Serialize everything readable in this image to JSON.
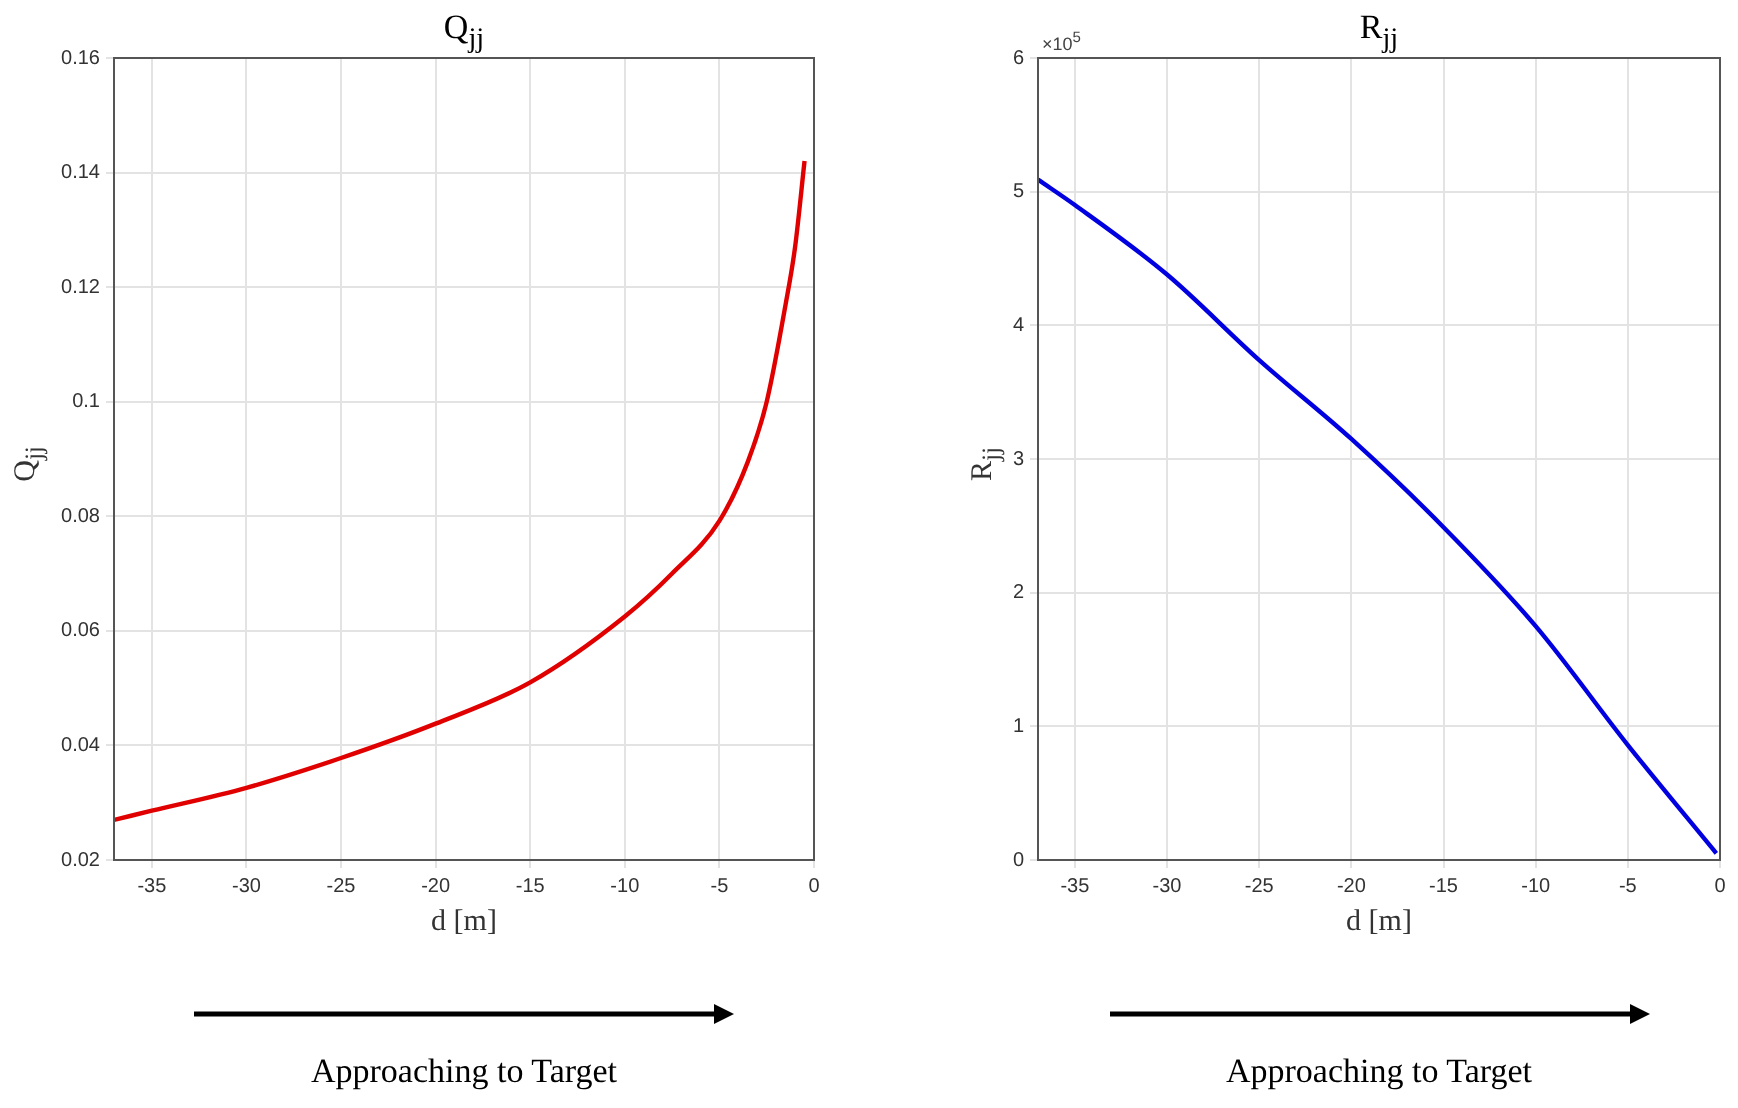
{
  "chart_data": [
    {
      "type": "line",
      "title": "Q$_{jj}$",
      "xlabel": "d [m]",
      "ylabel": "Q$_{jj}$",
      "x": [
        -37,
        -35,
        -30,
        -25,
        -20,
        -15,
        -10,
        -7.5,
        -5,
        -3.5,
        -2.5,
        -1.5,
        -1,
        -0.5
      ],
      "series": [
        {
          "color": "#e00000",
          "values": [
            0.027,
            0.0286,
            0.0326,
            0.0378,
            0.0438,
            0.051,
            0.0625,
            0.07,
            0.0792,
            0.0895,
            0.1,
            0.117,
            0.127,
            0.142
          ]
        }
      ],
      "xlim": [
        -37,
        0
      ],
      "ylim": [
        0.02,
        0.16
      ],
      "xticks": [
        -35,
        -30,
        -25,
        -20,
        -15,
        -10,
        -5,
        0
      ],
      "yticks": [
        0.02,
        0.04,
        0.06,
        0.08,
        0.1,
        0.12,
        0.14,
        0.16
      ],
      "grid": true,
      "annotations": [
        "Approaching to Target"
      ]
    },
    {
      "type": "line",
      "title": "R$_{jj}$",
      "xlabel": "d [m]",
      "ylabel": "R$_{jj}$",
      "x": [
        -37,
        -35,
        -30,
        -25,
        -20,
        -15,
        -10,
        -5,
        -0.2
      ],
      "series": [
        {
          "color": "#0000e0",
          "values": [
            5.09,
            4.9,
            4.38,
            3.74,
            3.15,
            2.49,
            1.75,
            0.86,
            0.05
          ]
        }
      ],
      "xlim": [
        -37,
        0
      ],
      "ylim": [
        0,
        6
      ],
      "xticks": [
        -35,
        -30,
        -25,
        -20,
        -15,
        -10,
        -5,
        0
      ],
      "yticks": [
        0,
        1,
        2,
        3,
        4,
        5,
        6
      ],
      "grid": true,
      "annotations": [
        "×10$^{5}$",
        "Approaching to Target"
      ]
    }
  ]
}
